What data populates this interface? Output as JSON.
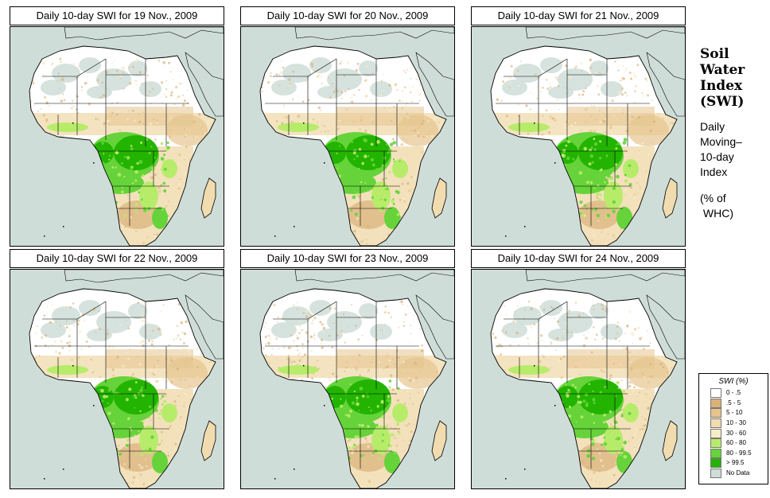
{
  "panels": [
    {
      "title": "Daily 10-day SWI for 19 Nov., 2009",
      "variant": 0
    },
    {
      "title": "Daily 10-day SWI for 20 Nov., 2009",
      "variant": 1
    },
    {
      "title": "Daily 10-day SWI for 21 Nov., 2009",
      "variant": 2
    },
    {
      "title": "Daily 10-day SWI for 22 Nov., 2009",
      "variant": 3
    },
    {
      "title": "Daily 10-day SWI for 23 Nov., 2009",
      "variant": 4
    },
    {
      "title": "Daily 10-day SWI for 24 Nov., 2009",
      "variant": 5
    }
  ],
  "side": {
    "title_lines": [
      "Soil",
      "Water",
      "Index",
      "(SWI)"
    ],
    "sub_lines": [
      "Daily",
      "Moving–",
      "10-day",
      "Index"
    ],
    "unit_lines": [
      "(% of",
      " WHC)"
    ]
  },
  "legend": {
    "title": "SWI (%)",
    "items": [
      {
        "label": "0 - .5",
        "color": "#ffffff"
      },
      {
        "label": ".5 - 5",
        "color": "#d9b27a"
      },
      {
        "label": "5 - 10",
        "color": "#e6c48e"
      },
      {
        "label": "10 - 30",
        "color": "#f1dcb0"
      },
      {
        "label": "30 - 60",
        "color": "#f7ecc8"
      },
      {
        "label": "60 - 80",
        "color": "#b7ec6a"
      },
      {
        "label": "80 - 99.5",
        "color": "#66d33a"
      },
      {
        "label": "> 99.5",
        "color": "#22b400"
      },
      {
        "label": "No Data",
        "color": "#cfddd8"
      }
    ]
  }
}
